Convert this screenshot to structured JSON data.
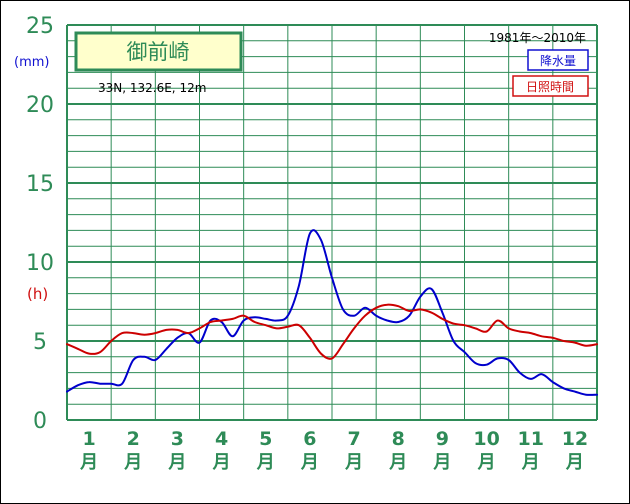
{
  "chart_data": {
    "type": "line",
    "station_name": "御前崎",
    "location": "33N, 132.6E, 12m",
    "period": "1981年〜2010年",
    "y_unit_rain": "(mm)",
    "y_unit_sun": "(h)",
    "ylim": [
      0,
      25
    ],
    "y_ticks": [
      0,
      5,
      10,
      15,
      20,
      25
    ],
    "x_month_numbers": [
      "1",
      "2",
      "3",
      "4",
      "5",
      "6",
      "7",
      "8",
      "9",
      "10",
      "11",
      "12"
    ],
    "x_month_suffix": "月",
    "grid": true,
    "legend_position": "top-right",
    "colors": {
      "grid": "#2e8b57",
      "rain": "#0000cc",
      "sun": "#cc0000",
      "station_box_fill": "#ffffcc"
    },
    "series": [
      {
        "name": "降水量",
        "x": [
          0.0,
          0.25,
          0.5,
          0.75,
          1.0,
          1.25,
          1.5,
          1.75,
          2.0,
          2.25,
          2.5,
          2.75,
          3.0,
          3.25,
          3.5,
          3.75,
          4.0,
          4.25,
          4.5,
          4.75,
          5.0,
          5.25,
          5.5,
          5.75,
          6.0,
          6.25,
          6.5,
          6.75,
          7.0,
          7.25,
          7.5,
          7.75,
          8.0,
          8.25,
          8.5,
          8.75,
          9.0,
          9.25,
          9.5,
          9.75,
          10.0,
          10.25,
          10.5,
          10.75,
          11.0,
          11.25,
          11.5,
          11.75,
          12.0
        ],
        "values": [
          1.8,
          2.2,
          2.4,
          2.3,
          2.3,
          2.3,
          3.8,
          4.0,
          3.8,
          4.5,
          5.2,
          5.5,
          4.9,
          6.3,
          6.2,
          5.3,
          6.3,
          6.5,
          6.4,
          6.3,
          6.6,
          8.5,
          11.8,
          11.4,
          9.0,
          7.0,
          6.6,
          7.1,
          6.6,
          6.3,
          6.2,
          6.6,
          7.8,
          8.3,
          6.8,
          5.0,
          4.3,
          3.6,
          3.5,
          3.9,
          3.8,
          3.0,
          2.6,
          2.9,
          2.4,
          2.0,
          1.8,
          1.6,
          1.6
        ]
      },
      {
        "name": "日照時間",
        "x": [
          0.0,
          0.25,
          0.5,
          0.75,
          1.0,
          1.25,
          1.5,
          1.75,
          2.0,
          2.25,
          2.5,
          2.75,
          3.0,
          3.25,
          3.5,
          3.75,
          4.0,
          4.25,
          4.5,
          4.75,
          5.0,
          5.25,
          5.5,
          5.75,
          6.0,
          6.25,
          6.5,
          6.75,
          7.0,
          7.25,
          7.5,
          7.75,
          8.0,
          8.25,
          8.5,
          8.75,
          9.0,
          9.25,
          9.5,
          9.75,
          10.0,
          10.25,
          10.5,
          10.75,
          11.0,
          11.25,
          11.5,
          11.75,
          12.0
        ],
        "values": [
          4.8,
          4.5,
          4.2,
          4.3,
          5.0,
          5.5,
          5.5,
          5.4,
          5.5,
          5.7,
          5.7,
          5.5,
          5.8,
          6.2,
          6.3,
          6.4,
          6.6,
          6.2,
          6.0,
          5.8,
          5.9,
          6.0,
          5.2,
          4.2,
          3.9,
          4.8,
          5.8,
          6.6,
          7.1,
          7.3,
          7.2,
          6.9,
          7.0,
          6.8,
          6.4,
          6.1,
          6.0,
          5.8,
          5.6,
          6.3,
          5.8,
          5.6,
          5.5,
          5.3,
          5.2,
          5.0,
          4.9,
          4.7,
          4.8
        ]
      }
    ]
  }
}
